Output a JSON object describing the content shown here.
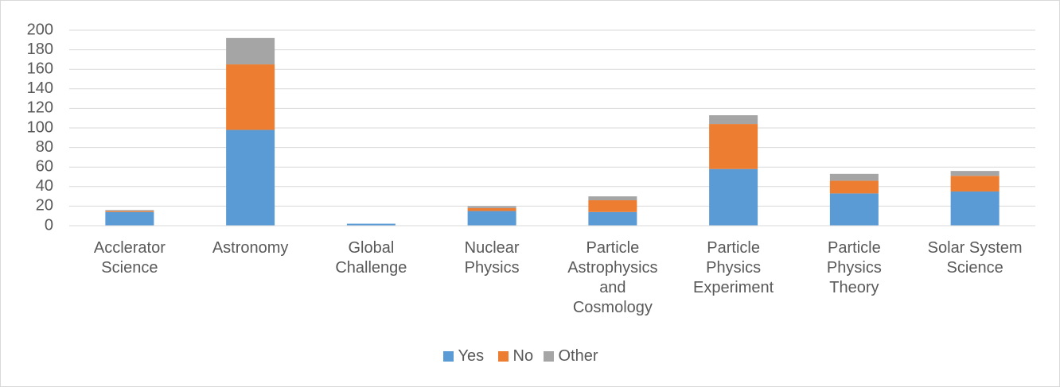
{
  "chart_data": {
    "type": "stacked_bar",
    "categories": [
      "Acclerator Science",
      "Astronomy",
      "Global Challenge",
      "Nuclear Physics",
      "Particle Astrophysics and Cosmology",
      "Particle Physics Experiment",
      "Particle Physics Theory",
      "Solar System Science"
    ],
    "series": [
      {
        "name": "Yes",
        "color": "#5b9bd5",
        "values": [
          14,
          98,
          2,
          15,
          14,
          58,
          33,
          35
        ]
      },
      {
        "name": "No",
        "color": "#ed7d31",
        "values": [
          1,
          67,
          0,
          3,
          12,
          46,
          13,
          16
        ]
      },
      {
        "name": "Other",
        "color": "#a5a5a5",
        "values": [
          1,
          27,
          0,
          2,
          4,
          9,
          7,
          5
        ]
      }
    ],
    "ylim": [
      0,
      200
    ],
    "yticks": [
      0,
      20,
      40,
      60,
      80,
      100,
      120,
      140,
      160,
      180,
      200
    ],
    "grid": true,
    "legend": "bottom"
  }
}
